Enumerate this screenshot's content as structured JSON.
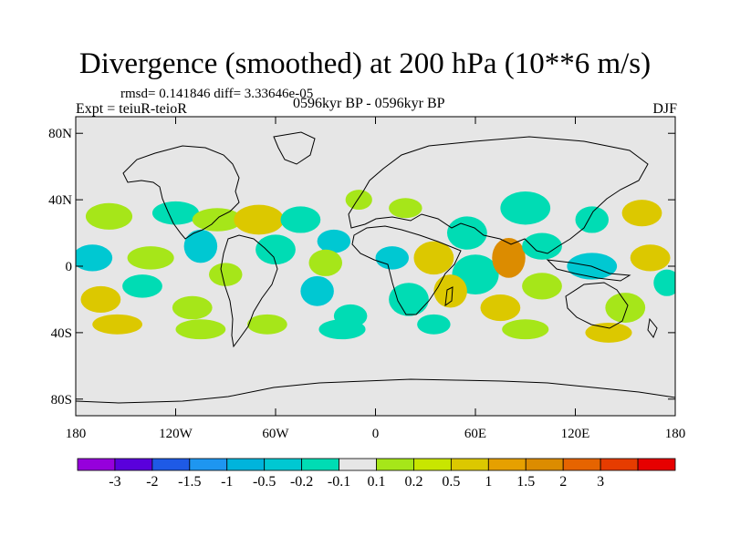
{
  "title": "Divergence (smoothed) at 200 hPa (10**6 m/s)",
  "stats": "rmsd= 0.141846 diff= 3.33646e-05",
  "experiment": "Expt = teiuR-teioR",
  "period": "0596kyr BP - 0596kyr BP",
  "season": "DJF",
  "map": {
    "projection": "cylindrical equidistant",
    "lon_range": [
      -180,
      180
    ],
    "lat_range": [
      -90,
      90
    ],
    "background_color": "#e6e6e6",
    "lat_ticks": [
      {
        "value": 80,
        "label": "80N"
      },
      {
        "value": 40,
        "label": "40N"
      },
      {
        "value": 0,
        "label": "0"
      },
      {
        "value": -40,
        "label": "40S"
      },
      {
        "value": -80,
        "label": "80S"
      }
    ],
    "lon_ticks": [
      {
        "value": -180,
        "label": "180"
      },
      {
        "value": -120,
        "label": "120W"
      },
      {
        "value": -60,
        "label": "60W"
      },
      {
        "value": 0,
        "label": "0"
      },
      {
        "value": 60,
        "label": "60E"
      },
      {
        "value": 120,
        "label": "120E"
      },
      {
        "value": 180,
        "label": "180"
      }
    ],
    "anomalies": [
      {
        "lon": -160,
        "lat": 30,
        "rx": 14,
        "ry": 8,
        "c": "#a6e619"
      },
      {
        "lon": -120,
        "lat": 32,
        "rx": 14,
        "ry": 7,
        "c": "#00dcb4"
      },
      {
        "lon": -95,
        "lat": 28,
        "rx": 15,
        "ry": 7,
        "c": "#a6e619"
      },
      {
        "lon": -70,
        "lat": 28,
        "rx": 15,
        "ry": 9,
        "c": "#dcc800"
      },
      {
        "lon": -45,
        "lat": 28,
        "rx": 12,
        "ry": 8,
        "c": "#00dcb4"
      },
      {
        "lon": -25,
        "lat": 15,
        "rx": 10,
        "ry": 7,
        "c": "#00c8d2"
      },
      {
        "lon": -10,
        "lat": 40,
        "rx": 8,
        "ry": 6,
        "c": "#a6e619"
      },
      {
        "lon": 18,
        "lat": 35,
        "rx": 10,
        "ry": 6,
        "c": "#a6e619"
      },
      {
        "lon": 55,
        "lat": 20,
        "rx": 12,
        "ry": 10,
        "c": "#00dcb4"
      },
      {
        "lon": 90,
        "lat": 35,
        "rx": 15,
        "ry": 10,
        "c": "#00dcb4"
      },
      {
        "lon": 130,
        "lat": 28,
        "rx": 10,
        "ry": 8,
        "c": "#00dcb4"
      },
      {
        "lon": 160,
        "lat": 32,
        "rx": 12,
        "ry": 8,
        "c": "#dcc800"
      },
      {
        "lon": -170,
        "lat": 5,
        "rx": 12,
        "ry": 8,
        "c": "#00c8d2"
      },
      {
        "lon": -135,
        "lat": 5,
        "rx": 14,
        "ry": 7,
        "c": "#a6e619"
      },
      {
        "lon": -105,
        "lat": 12,
        "rx": 10,
        "ry": 10,
        "c": "#00c8d2"
      },
      {
        "lon": -60,
        "lat": 10,
        "rx": 12,
        "ry": 9,
        "c": "#00dcb4"
      },
      {
        "lon": -30,
        "lat": 2,
        "rx": 10,
        "ry": 8,
        "c": "#a6e619"
      },
      {
        "lon": 10,
        "lat": 5,
        "rx": 10,
        "ry": 7,
        "c": "#00c8d2"
      },
      {
        "lon": 35,
        "lat": 5,
        "rx": 12,
        "ry": 10,
        "c": "#dcc800"
      },
      {
        "lon": 60,
        "lat": -5,
        "rx": 14,
        "ry": 12,
        "c": "#00dcb4"
      },
      {
        "lon": 80,
        "lat": 5,
        "rx": 10,
        "ry": 12,
        "c": "#dc8c00"
      },
      {
        "lon": 100,
        "lat": 12,
        "rx": 12,
        "ry": 8,
        "c": "#00dcb4"
      },
      {
        "lon": 130,
        "lat": 0,
        "rx": 15,
        "ry": 8,
        "c": "#00c8d2"
      },
      {
        "lon": 165,
        "lat": 5,
        "rx": 12,
        "ry": 8,
        "c": "#dcc800"
      },
      {
        "lon": -165,
        "lat": -20,
        "rx": 12,
        "ry": 8,
        "c": "#dcc800"
      },
      {
        "lon": -140,
        "lat": -12,
        "rx": 12,
        "ry": 7,
        "c": "#00dcb4"
      },
      {
        "lon": -110,
        "lat": -25,
        "rx": 12,
        "ry": 7,
        "c": "#a6e619"
      },
      {
        "lon": -90,
        "lat": -5,
        "rx": 10,
        "ry": 7,
        "c": "#a6e619"
      },
      {
        "lon": -35,
        "lat": -15,
        "rx": 10,
        "ry": 9,
        "c": "#00c8d2"
      },
      {
        "lon": -15,
        "lat": -30,
        "rx": 10,
        "ry": 7,
        "c": "#00dcb4"
      },
      {
        "lon": 20,
        "lat": -20,
        "rx": 12,
        "ry": 10,
        "c": "#00dcb4"
      },
      {
        "lon": 45,
        "lat": -15,
        "rx": 10,
        "ry": 10,
        "c": "#dcc800"
      },
      {
        "lon": 75,
        "lat": -25,
        "rx": 12,
        "ry": 8,
        "c": "#dcc800"
      },
      {
        "lon": 100,
        "lat": -12,
        "rx": 12,
        "ry": 8,
        "c": "#a6e619"
      },
      {
        "lon": 150,
        "lat": -25,
        "rx": 12,
        "ry": 9,
        "c": "#a6e619"
      },
      {
        "lon": 175,
        "lat": -10,
        "rx": 8,
        "ry": 8,
        "c": "#00dcb4"
      },
      {
        "lon": -155,
        "lat": -35,
        "rx": 15,
        "ry": 6,
        "c": "#dcc800"
      },
      {
        "lon": -105,
        "lat": -38,
        "rx": 15,
        "ry": 6,
        "c": "#a6e619"
      },
      {
        "lon": -65,
        "lat": -35,
        "rx": 12,
        "ry": 6,
        "c": "#a6e619"
      },
      {
        "lon": -20,
        "lat": -38,
        "rx": 14,
        "ry": 6,
        "c": "#00dcb4"
      },
      {
        "lon": 35,
        "lat": -35,
        "rx": 10,
        "ry": 6,
        "c": "#00dcb4"
      },
      {
        "lon": 90,
        "lat": -38,
        "rx": 14,
        "ry": 6,
        "c": "#a6e619"
      },
      {
        "lon": 140,
        "lat": -40,
        "rx": 14,
        "ry": 6,
        "c": "#dcc800"
      }
    ]
  },
  "colorbar": {
    "colors": [
      "#9600dc",
      "#5a00dc",
      "#1e5ae6",
      "#1e96f0",
      "#00b4dc",
      "#00c8d2",
      "#00dcb4",
      "#e6e6e6",
      "#a6e619",
      "#c8e600",
      "#dcc800",
      "#e6a000",
      "#dc8c00",
      "#e66400",
      "#e63c00",
      "#e60000"
    ],
    "labels": [
      "-3",
      "-2",
      "-1.5",
      "-1",
      "-0.5",
      "-0.2",
      "-0.1",
      "0.1",
      "0.2",
      "0.5",
      "1",
      "1.5",
      "2",
      "3"
    ]
  }
}
